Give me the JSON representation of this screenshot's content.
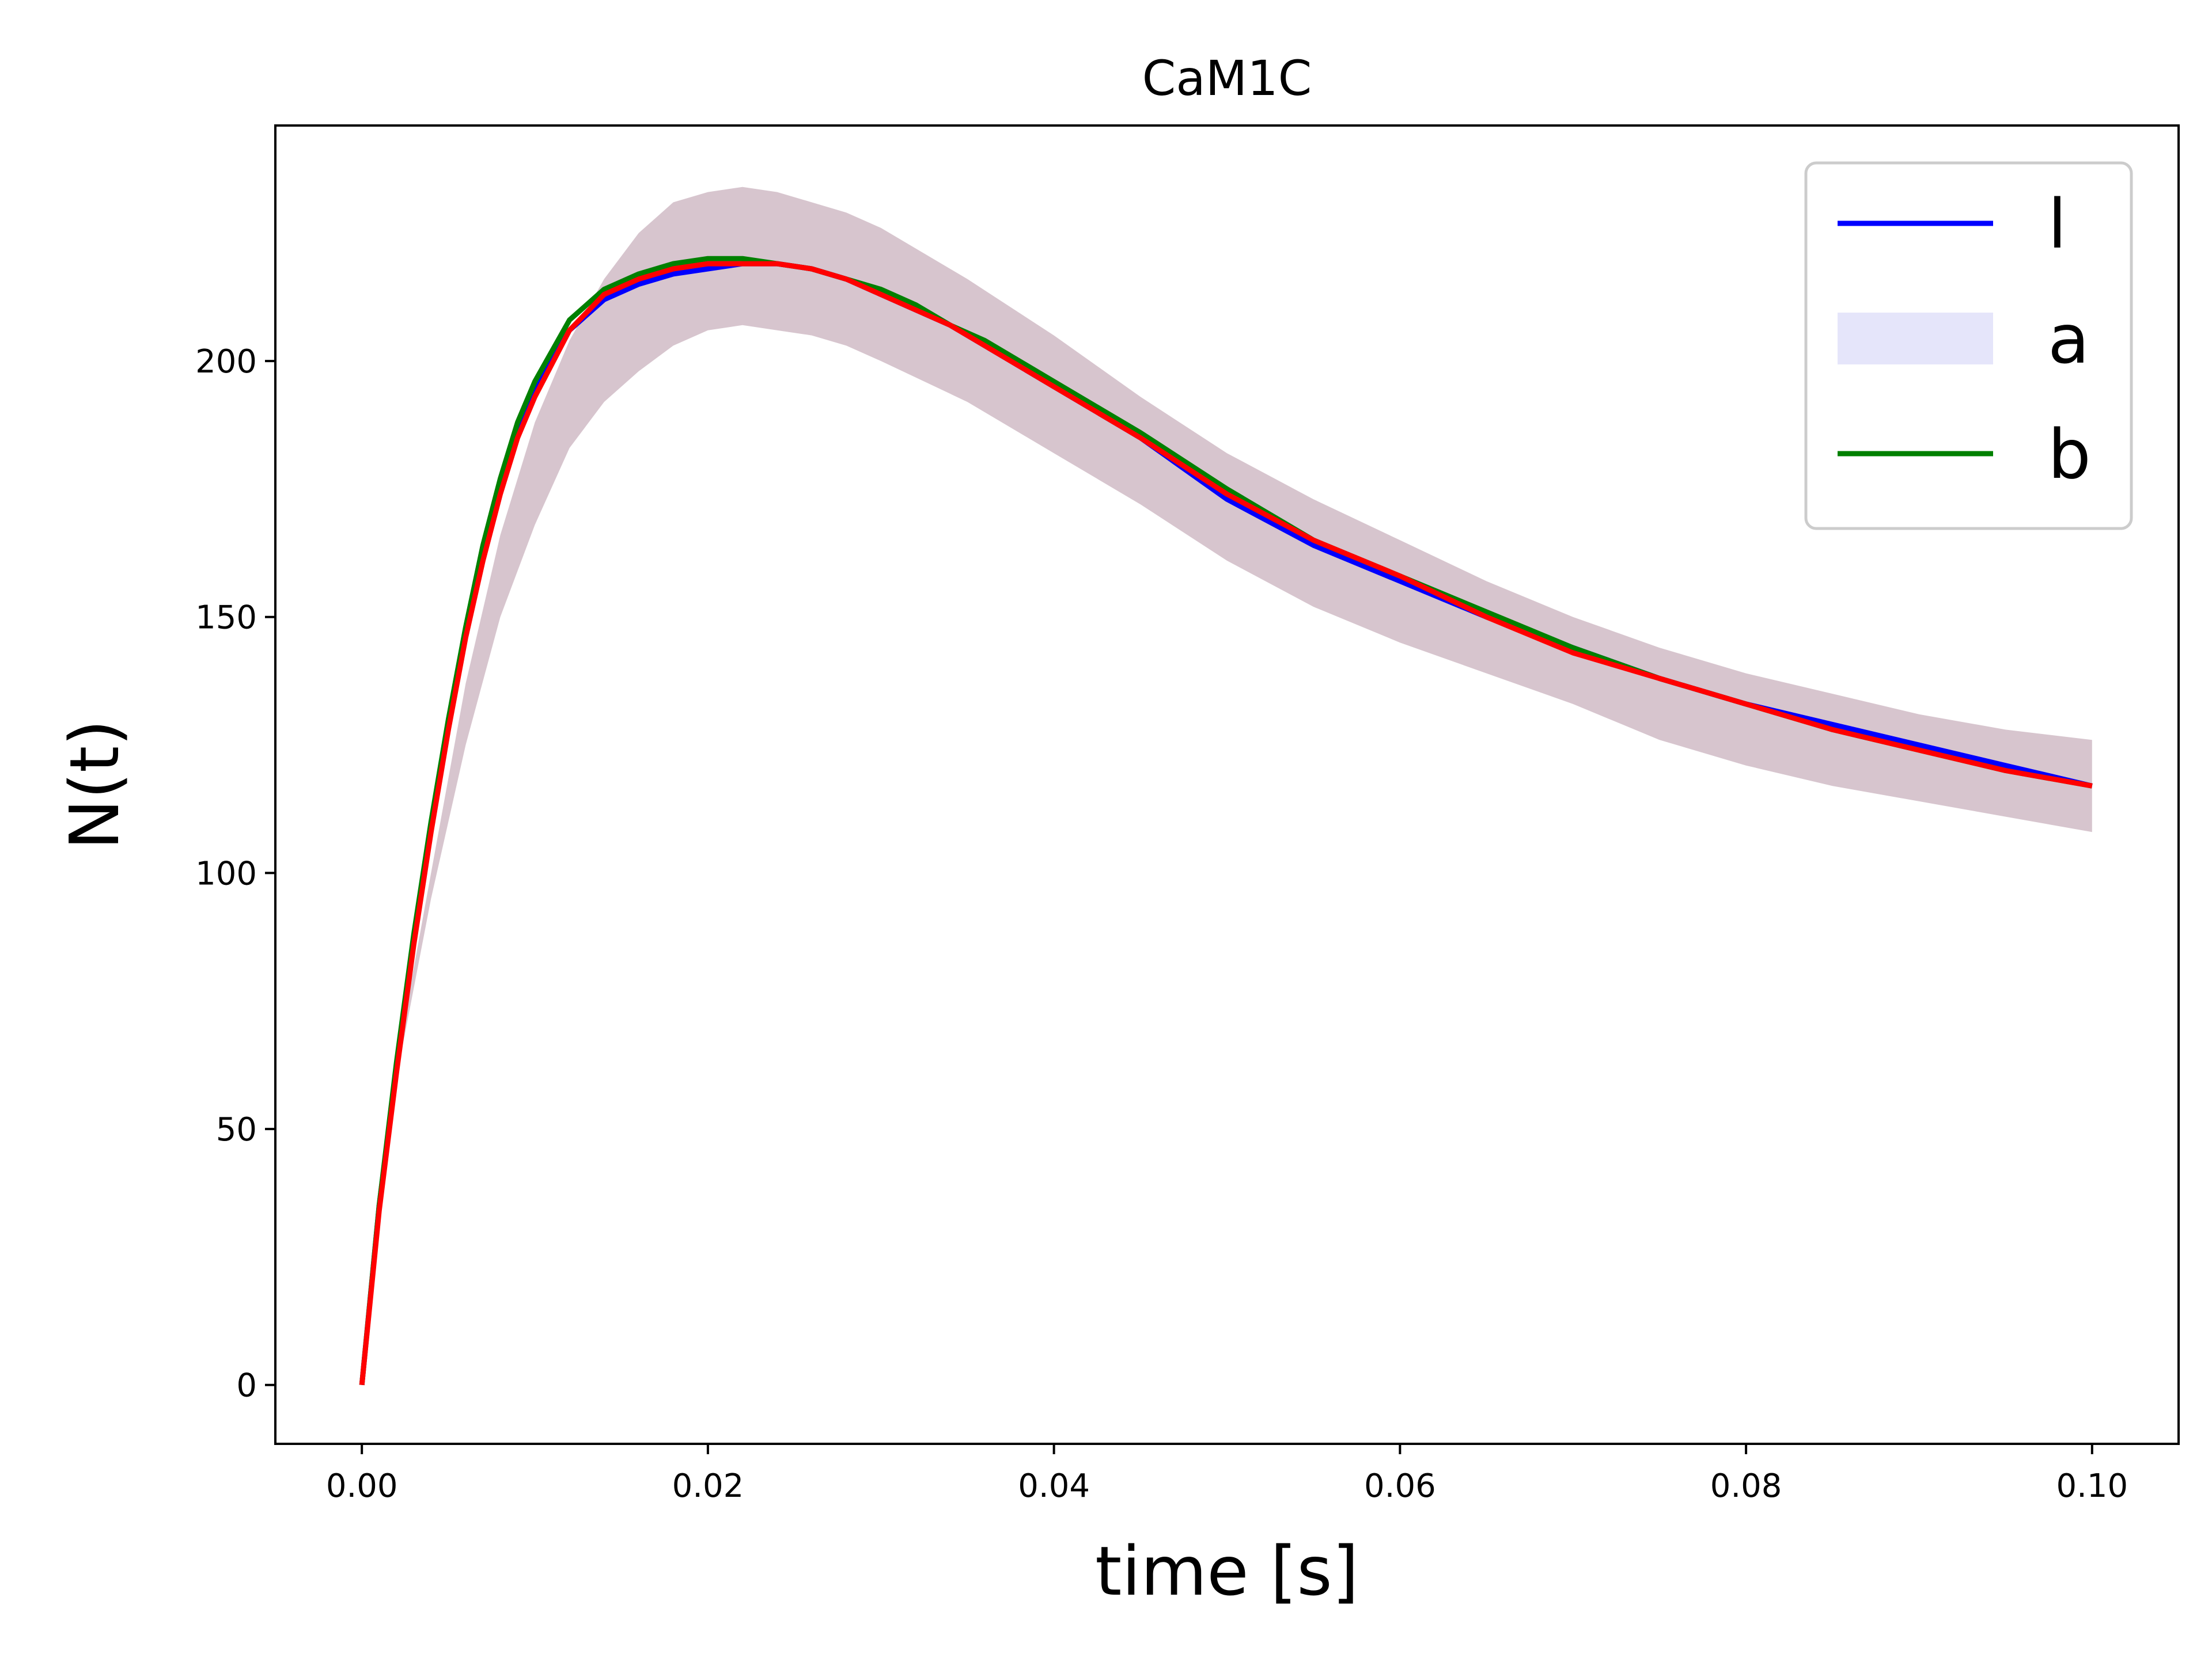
{
  "chart_data": {
    "type": "line",
    "title": "CaM1C",
    "xlabel": "time [s]",
    "ylabel": "N(t)",
    "xlim": [
      -0.005,
      0.105
    ],
    "ylim": [
      -11.5,
      246
    ],
    "xticks": [
      0.0,
      0.02,
      0.04,
      0.06,
      0.08,
      0.1
    ],
    "xtick_labels": [
      "0.00",
      "0.02",
      "0.04",
      "0.06",
      "0.08",
      "0.10"
    ],
    "yticks": [
      0,
      50,
      100,
      150,
      200
    ],
    "ytick_labels": [
      "0",
      "50",
      "100",
      "150",
      "200"
    ],
    "grid": false,
    "legend_position": "top-right",
    "legend": [
      {
        "label": "l",
        "kind": "line",
        "color": "#0000ff"
      },
      {
        "label": "a",
        "kind": "band",
        "color": "#e5e5fa"
      },
      {
        "label": "b",
        "kind": "line",
        "color": "#008000"
      }
    ],
    "band": {
      "color": "#c9b1bd",
      "x": [
        0.0,
        0.002,
        0.004,
        0.006,
        0.008,
        0.01,
        0.012,
        0.014,
        0.016,
        0.018,
        0.02,
        0.022,
        0.024,
        0.026,
        0.028,
        0.03,
        0.035,
        0.04,
        0.045,
        0.05,
        0.055,
        0.06,
        0.065,
        0.07,
        0.075,
        0.08,
        0.085,
        0.09,
        0.095,
        0.1
      ],
      "lower": [
        0,
        60,
        95,
        125,
        150,
        168,
        183,
        192,
        198,
        203,
        206,
        207,
        206,
        205,
        203,
        200,
        192,
        182,
        172,
        161,
        152,
        145,
        139,
        133,
        126,
        121,
        117,
        114,
        111,
        108
      ],
      "upper": [
        0,
        63,
        100,
        137,
        166,
        188,
        204,
        216,
        225,
        231,
        233,
        234,
        233,
        231,
        229,
        226,
        216,
        205,
        193,
        182,
        173,
        165,
        157,
        150,
        144,
        139,
        135,
        131,
        128,
        126
      ]
    },
    "series": [
      {
        "name": "l",
        "color": "#0000ff",
        "x": [
          0.0,
          0.001,
          0.002,
          0.003,
          0.004,
          0.005,
          0.006,
          0.007,
          0.008,
          0.009,
          0.01,
          0.012,
          0.014,
          0.016,
          0.018,
          0.02,
          0.022,
          0.024,
          0.026,
          0.028,
          0.03,
          0.032,
          0.034,
          0.036,
          0.038,
          0.04,
          0.045,
          0.05,
          0.055,
          0.06,
          0.065,
          0.07,
          0.075,
          0.08,
          0.085,
          0.09,
          0.095,
          0.1
        ],
        "y": [
          0,
          35,
          62,
          87,
          109,
          129,
          147,
          163,
          176,
          186,
          194,
          206,
          212,
          215,
          217,
          218,
          219,
          219,
          218,
          216,
          213,
          210,
          207,
          203,
          199,
          195,
          185,
          173,
          164,
          157,
          150,
          144,
          138,
          133,
          129,
          125,
          121,
          117
        ]
      },
      {
        "name": "b",
        "color": "#008000",
        "x": [
          0.0,
          0.001,
          0.002,
          0.003,
          0.004,
          0.005,
          0.006,
          0.007,
          0.008,
          0.009,
          0.01,
          0.012,
          0.014,
          0.016,
          0.018,
          0.02,
          0.022,
          0.024,
          0.026,
          0.028,
          0.03,
          0.032,
          0.034,
          0.036,
          0.038,
          0.04,
          0.045,
          0.05,
          0.055,
          0.06,
          0.065,
          0.07,
          0.075,
          0.08,
          0.085,
          0.09,
          0.095,
          0.1
        ],
        "y": [
          0,
          35,
          63,
          88,
          110,
          130,
          148,
          164,
          177,
          188,
          196,
          208,
          214,
          217,
          219,
          220,
          220,
          219,
          218,
          216,
          214,
          211,
          207,
          204,
          200,
          196,
          186,
          175,
          165,
          158,
          151,
          144,
          138,
          133,
          128,
          124,
          120,
          117
        ]
      },
      {
        "name": "",
        "color": "#ff0000",
        "x": [
          0.0,
          0.001,
          0.002,
          0.003,
          0.004,
          0.005,
          0.006,
          0.007,
          0.008,
          0.009,
          0.01,
          0.012,
          0.014,
          0.016,
          0.018,
          0.02,
          0.022,
          0.024,
          0.026,
          0.028,
          0.03,
          0.032,
          0.034,
          0.036,
          0.038,
          0.04,
          0.045,
          0.05,
          0.055,
          0.06,
          0.065,
          0.07,
          0.075,
          0.08,
          0.085,
          0.09,
          0.095,
          0.1
        ],
        "y": [
          0,
          34,
          61,
          86,
          108,
          128,
          146,
          161,
          174,
          185,
          193,
          206,
          213,
          216,
          218,
          219,
          219,
          219,
          218,
          216,
          213,
          210,
          207,
          203,
          199,
          195,
          185,
          174,
          165,
          158,
          150,
          143,
          138,
          133,
          128,
          124,
          120,
          117
        ]
      }
    ]
  }
}
